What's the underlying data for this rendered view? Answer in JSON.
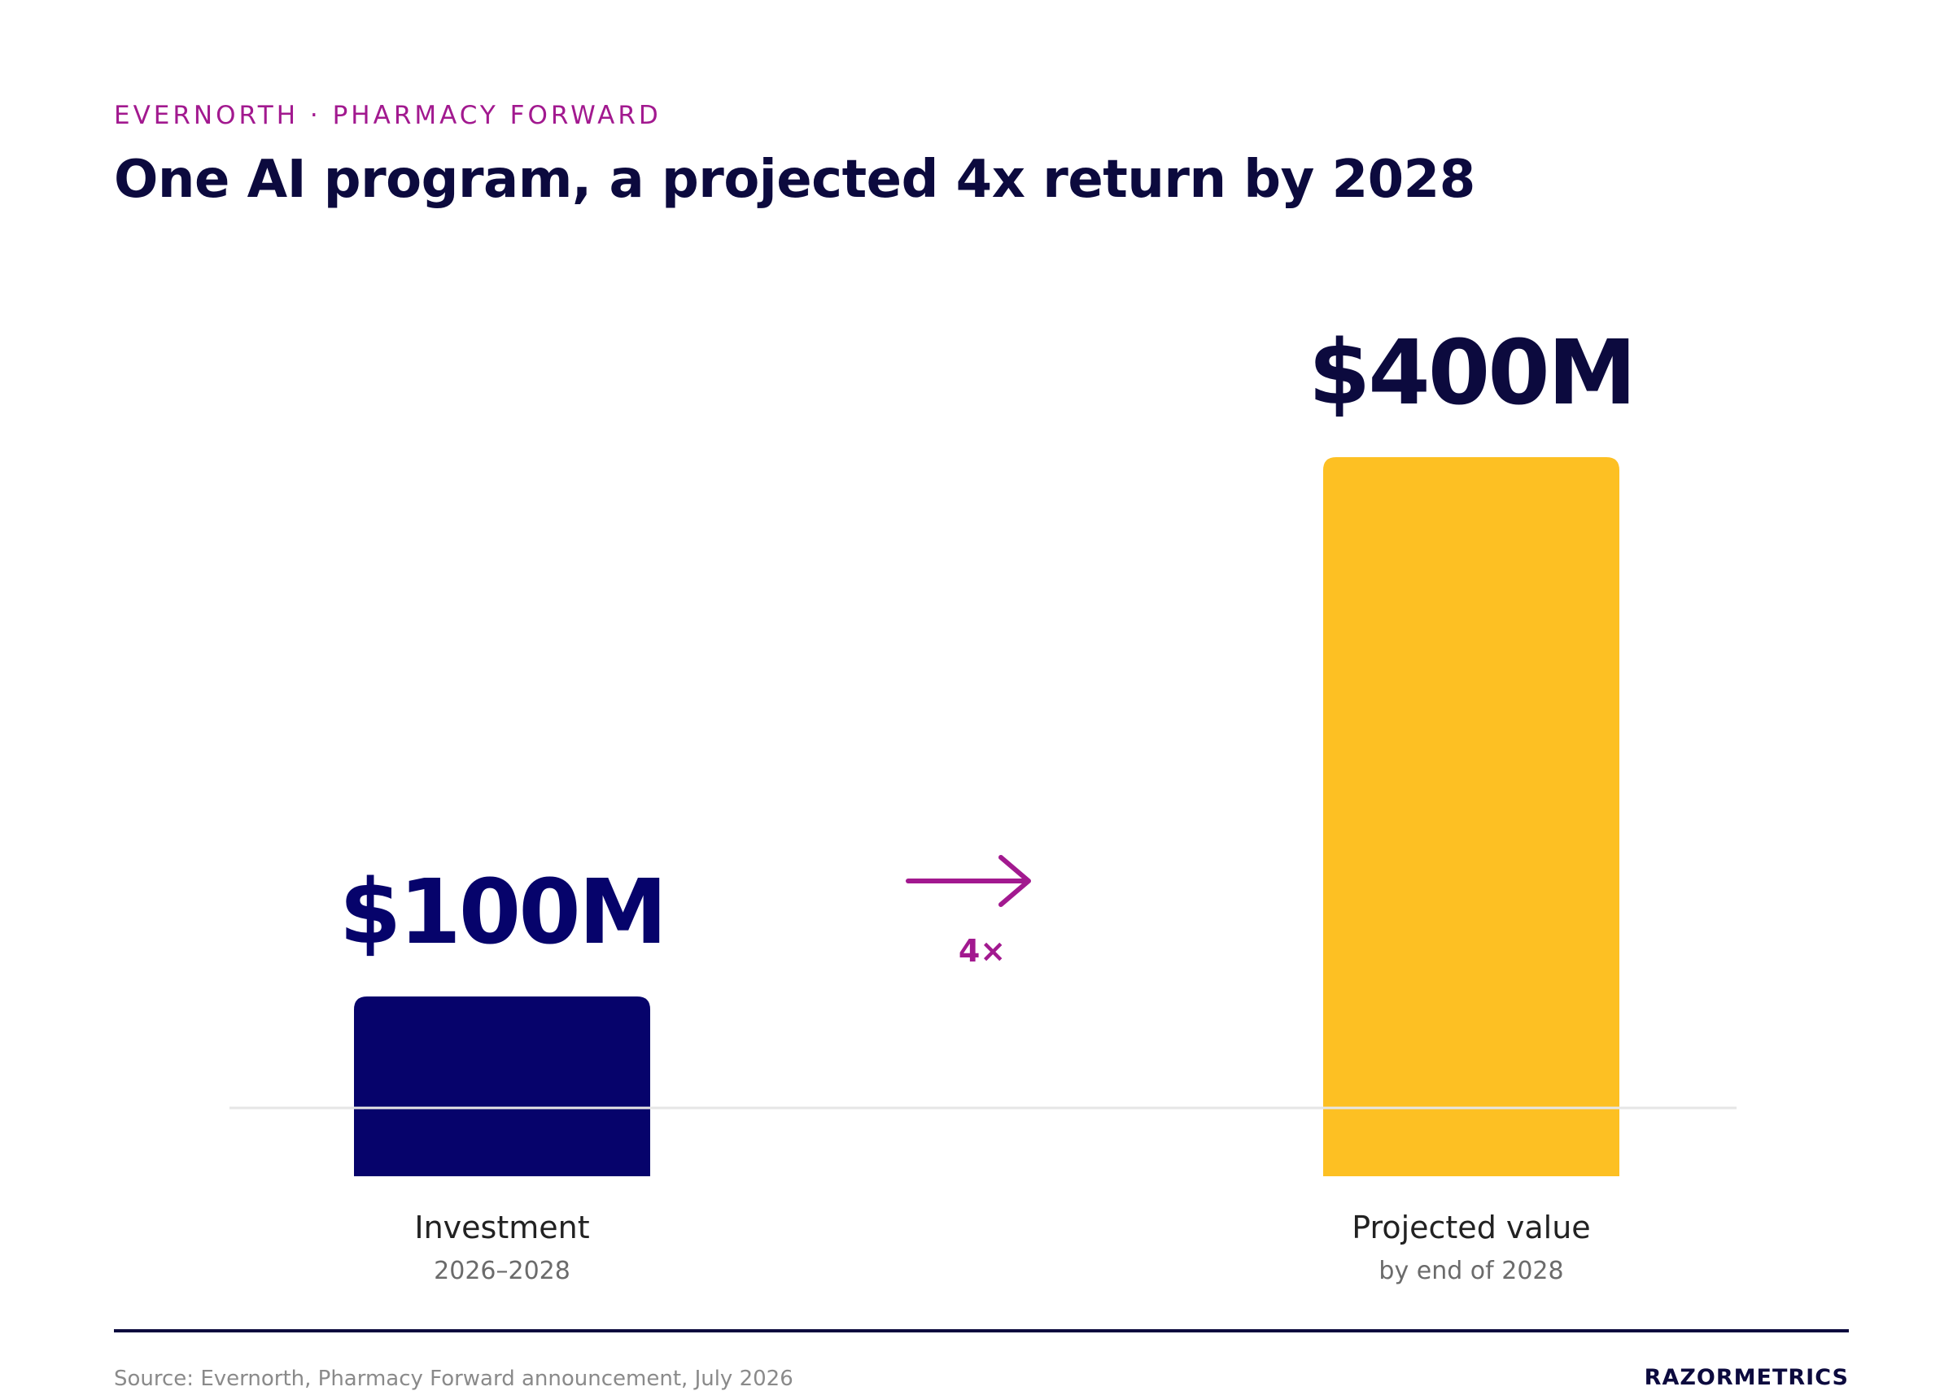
{
  "header": {
    "eyebrow": "EVERNORTH · PHARMACY FORWARD",
    "title": "One AI program, a projected 4x return by 2028"
  },
  "chart_data": {
    "type": "bar",
    "categories": [
      "Investment",
      "Projected value"
    ],
    "subcategories": [
      "2026–2028",
      "by end of 2028"
    ],
    "values": [
      100,
      400
    ],
    "value_labels": [
      "$100M",
      "$400M"
    ],
    "unit": "$M",
    "colors": [
      "#06036b",
      "#fdc023"
    ],
    "value_label_colors": [
      "#06036b",
      "#0c0a3e"
    ],
    "multiplier_label": "4×",
    "accent_color": "#a2198f",
    "grid": false,
    "legend": "none"
  },
  "footer": {
    "source": "Source: Evernorth, Pharmacy Forward announcement, July 2026",
    "brand": "RAZORMETRICS"
  }
}
